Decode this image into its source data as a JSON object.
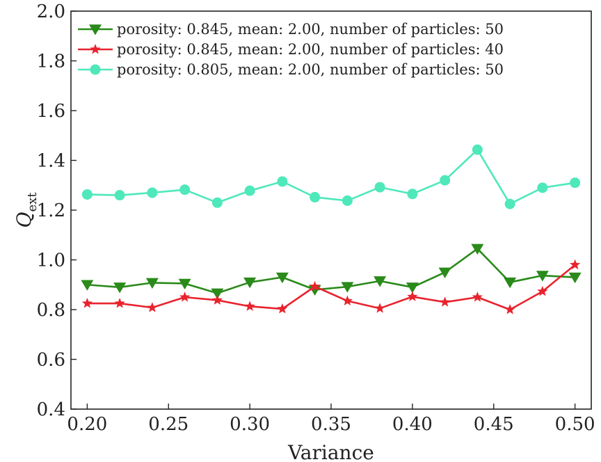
{
  "chart_data": {
    "type": "line",
    "title": "",
    "xlabel": "Variance",
    "ylabel_main": "Q",
    "ylabel_sub": "ext",
    "xlim": [
      0.19,
      0.51
    ],
    "ylim": [
      0.4,
      2.0
    ],
    "xticks": [
      "0.20",
      "0.25",
      "0.30",
      "0.35",
      "0.40",
      "0.45",
      "0.50"
    ],
    "yticks": [
      "0.4",
      "0.6",
      "0.8",
      "1.0",
      "1.2",
      "1.4",
      "1.6",
      "1.8",
      "2.0"
    ],
    "legend_position": "top-left",
    "x": [
      0.2,
      0.22,
      0.24,
      0.26,
      0.28,
      0.3,
      0.32,
      0.34,
      0.36,
      0.38,
      0.4,
      0.42,
      0.44,
      0.46,
      0.48,
      0.5
    ],
    "series": [
      {
        "name": "porosity: 0.845, mean: 2.00, number of  particles: 50",
        "color": "#2a8a1a",
        "marker": "triangle-down",
        "values": [
          0.9,
          0.89,
          0.908,
          0.905,
          0.866,
          0.91,
          0.93,
          0.88,
          0.892,
          0.915,
          0.89,
          0.95,
          1.045,
          0.91,
          0.937,
          0.93
        ]
      },
      {
        "name": "porosity: 0.845, mean: 2.00, number of  particles: 40",
        "color": "#e8232e",
        "marker": "star",
        "values": [
          0.825,
          0.825,
          0.808,
          0.85,
          0.838,
          0.813,
          0.803,
          0.893,
          0.835,
          0.805,
          0.852,
          0.83,
          0.85,
          0.8,
          0.873,
          0.98
        ]
      },
      {
        "name": "porosity: 0.805, mean: 2.00, number of  particles: 50",
        "color": "#4ee8bb",
        "marker": "circle",
        "values": [
          1.263,
          1.26,
          1.27,
          1.282,
          1.23,
          1.278,
          1.315,
          1.252,
          1.238,
          1.292,
          1.265,
          1.32,
          1.443,
          1.225,
          1.29,
          1.31
        ]
      }
    ]
  }
}
